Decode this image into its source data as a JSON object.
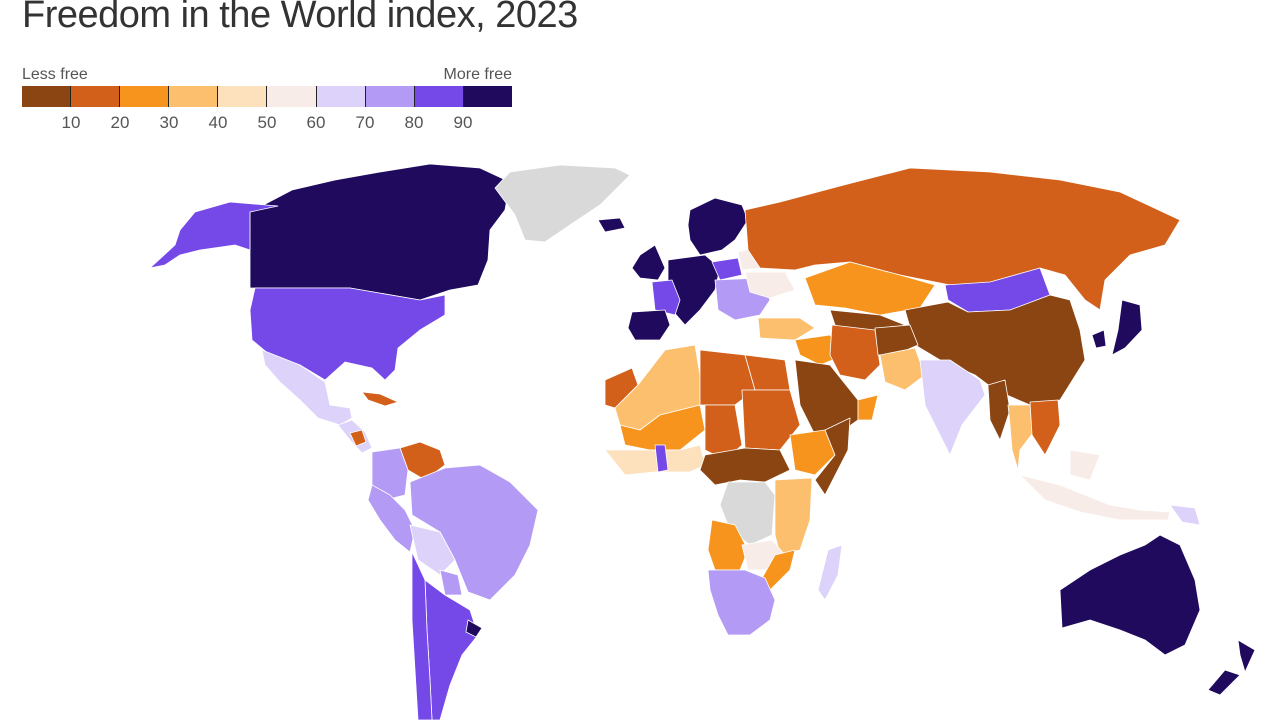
{
  "title": "Freedom in the World index, 2023",
  "legend": {
    "low_label": "Less free",
    "high_label": "More free",
    "ticks": [
      "10",
      "20",
      "30",
      "40",
      "50",
      "60",
      "70",
      "80",
      "90"
    ],
    "colors": [
      "#8b4513",
      "#d2601a",
      "#f7941d",
      "#fbbf6e",
      "#fde0bc",
      "#f8ece8",
      "#dcd2fa",
      "#b39af5",
      "#7548e8",
      "#1f0a5e"
    ]
  },
  "map": {
    "no_data_color": "#d9d9d9",
    "regions": [
      {
        "name": "canada",
        "color": "#1f0a5e"
      },
      {
        "name": "alaska",
        "color": "#7548e8"
      },
      {
        "name": "greenland",
        "color": "#d9d9d9"
      },
      {
        "name": "united-states",
        "color": "#7548e8"
      },
      {
        "name": "mexico",
        "color": "#dcd2fa"
      },
      {
        "name": "central-america",
        "color": "#dcd2fa"
      },
      {
        "name": "nicaragua",
        "color": "#d2601a"
      },
      {
        "name": "cuba",
        "color": "#d2601a"
      },
      {
        "name": "venezuela",
        "color": "#d2601a"
      },
      {
        "name": "colombia",
        "color": "#b39af5"
      },
      {
        "name": "brazil",
        "color": "#b39af5"
      },
      {
        "name": "peru",
        "color": "#b39af5"
      },
      {
        "name": "bolivia",
        "color": "#dcd2fa"
      },
      {
        "name": "paraguay",
        "color": "#b39af5"
      },
      {
        "name": "argentina",
        "color": "#7548e8"
      },
      {
        "name": "chile",
        "color": "#7548e8"
      },
      {
        "name": "uruguay",
        "color": "#1f0a5e"
      },
      {
        "name": "scandinavia",
        "color": "#1f0a5e"
      },
      {
        "name": "iceland",
        "color": "#1f0a5e"
      },
      {
        "name": "uk-ireland",
        "color": "#1f0a5e"
      },
      {
        "name": "western-europe",
        "color": "#1f0a5e"
      },
      {
        "name": "france",
        "color": "#7548e8"
      },
      {
        "name": "iberia",
        "color": "#1f0a5e"
      },
      {
        "name": "poland",
        "color": "#7548e8"
      },
      {
        "name": "eastern-europe",
        "color": "#b39af5"
      },
      {
        "name": "belarus",
        "color": "#f8ece8"
      },
      {
        "name": "ukraine",
        "color": "#f8ece8"
      },
      {
        "name": "russia",
        "color": "#d2601a"
      },
      {
        "name": "turkey",
        "color": "#fbbf6e"
      },
      {
        "name": "kazakhstan",
        "color": "#f7941d"
      },
      {
        "name": "central-asia",
        "color": "#8b4513"
      },
      {
        "name": "mongolia",
        "color": "#7548e8"
      },
      {
        "name": "china",
        "color": "#8b4513"
      },
      {
        "name": "korea-japan",
        "color": "#1f0a5e"
      },
      {
        "name": "middle-east",
        "color": "#f7941d"
      },
      {
        "name": "iran",
        "color": "#d2601a"
      },
      {
        "name": "afghanistan",
        "color": "#8b4513"
      },
      {
        "name": "pakistan",
        "color": "#fbbf6e"
      },
      {
        "name": "arabia",
        "color": "#8b4513"
      },
      {
        "name": "oman",
        "color": "#f7941d"
      },
      {
        "name": "india",
        "color": "#dcd2fa"
      },
      {
        "name": "myanmar",
        "color": "#8b4513"
      },
      {
        "name": "thailand",
        "color": "#fbbf6e"
      },
      {
        "name": "vietnam-laos",
        "color": "#d2601a"
      },
      {
        "name": "indonesia",
        "color": "#f8ece8"
      },
      {
        "name": "papua",
        "color": "#dcd2fa"
      },
      {
        "name": "australia",
        "color": "#1f0a5e"
      },
      {
        "name": "new-zealand",
        "color": "#1f0a5e"
      },
      {
        "name": "north-africa-west",
        "color": "#fbbf6e"
      },
      {
        "name": "morocco",
        "color": "#d2601a"
      },
      {
        "name": "libya",
        "color": "#d2601a"
      },
      {
        "name": "egypt",
        "color": "#d2601a"
      },
      {
        "name": "sahel",
        "color": "#f7941d"
      },
      {
        "name": "chad",
        "color": "#d2601a"
      },
      {
        "name": "sudan",
        "color": "#d2601a"
      },
      {
        "name": "ethiopia",
        "color": "#f7941d"
      },
      {
        "name": "somalia",
        "color": "#8b4513"
      },
      {
        "name": "west-africa",
        "color": "#fde0bc"
      },
      {
        "name": "ghana",
        "color": "#7548e8"
      },
      {
        "name": "central-africa",
        "color": "#8b4513"
      },
      {
        "name": "congo",
        "color": "#d9d9d9"
      },
      {
        "name": "east-africa",
        "color": "#fbbf6e"
      },
      {
        "name": "angola",
        "color": "#f7941d"
      },
      {
        "name": "zambia",
        "color": "#f8ece8"
      },
      {
        "name": "southern-africa",
        "color": "#b39af5"
      },
      {
        "name": "mozambique",
        "color": "#f7941d"
      },
      {
        "name": "madagascar",
        "color": "#dcd2fa"
      }
    ]
  }
}
